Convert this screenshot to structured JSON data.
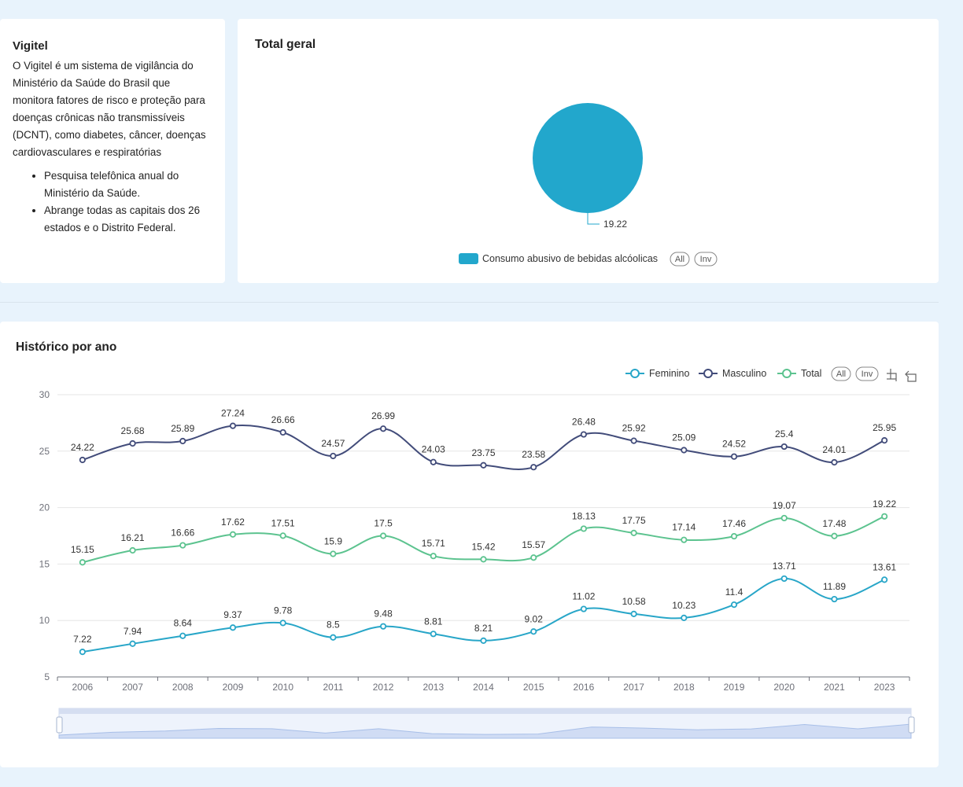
{
  "info": {
    "title": "Vigitel",
    "description": "O Vigitel é um sistema de vigilância do Ministério da Saúde do Brasil que monitora fatores de risco e proteção para doenças crônicas não transmissíveis (DCNT), como diabetes, câncer, doenças cardiovasculares e respiratórias",
    "bullets": [
      "Pesquisa telefônica anual do Ministério da Saúde.",
      "Abrange todas as capitais dos 26 estados e o Distrito Federal."
    ]
  },
  "pie_section": {
    "title": "Total geral"
  },
  "history_section": {
    "title": "Histórico por ano"
  },
  "legend_buttons": {
    "all": "All",
    "inv": "Inv"
  },
  "colors": {
    "feminino": "#28a6c8",
    "masculino": "#424c7a",
    "total": "#5cc38f",
    "pie": "#22a7cc"
  },
  "chart_data": [
    {
      "type": "pie",
      "title": "Total geral",
      "slices": [
        {
          "name": "Consumo abusivo de bebidas alcóolicas",
          "value": 19.22
        }
      ],
      "legend": "bottom-center"
    },
    {
      "type": "line",
      "title": "Histórico por ano",
      "x": [
        "2006",
        "2007",
        "2008",
        "2009",
        "2010",
        "2011",
        "2012",
        "2013",
        "2014",
        "2015",
        "2016",
        "2017",
        "2018",
        "2019",
        "2020",
        "2021",
        "2023"
      ],
      "series": [
        {
          "name": "Feminino",
          "values": [
            7.22,
            7.94,
            8.64,
            9.37,
            9.78,
            8.5,
            9.48,
            8.81,
            8.21,
            9.02,
            11.02,
            10.58,
            10.23,
            11.4,
            13.71,
            11.89,
            13.61
          ]
        },
        {
          "name": "Masculino",
          "values": [
            24.22,
            25.68,
            25.89,
            27.24,
            26.66,
            24.57,
            26.99,
            24.03,
            23.75,
            23.58,
            26.48,
            25.92,
            25.09,
            24.52,
            25.4,
            24.01,
            25.95
          ]
        },
        {
          "name": "Total",
          "values": [
            15.15,
            16.21,
            16.66,
            17.62,
            17.51,
            15.9,
            17.5,
            15.71,
            15.42,
            15.57,
            18.13,
            17.75,
            17.14,
            17.46,
            19.07,
            17.48,
            19.22
          ]
        }
      ],
      "ylim": [
        5,
        30
      ],
      "yticks": [
        5,
        10,
        15,
        20,
        25,
        30
      ],
      "grid": true,
      "smooth": true,
      "legend": "top-right",
      "data_zoom": true
    }
  ]
}
